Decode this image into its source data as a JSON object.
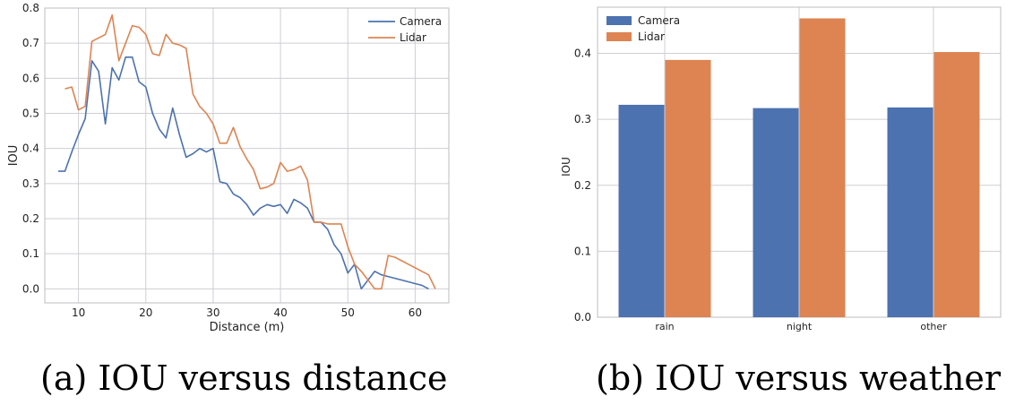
{
  "colors": {
    "camera": "#4c72b0",
    "lidar": "#dd8452",
    "grid": "#cfcfd4",
    "frame": "#bdbdc2"
  },
  "chart_data": [
    {
      "type": "line",
      "xlabel": "Distance (m)",
      "ylabel": "IOU",
      "xlim": [
        5,
        65
      ],
      "ylim": [
        -0.04,
        0.8
      ],
      "xticks": [
        10,
        20,
        30,
        40,
        50,
        60
      ],
      "yticks": [
        0.0,
        0.1,
        0.2,
        0.3,
        0.4,
        0.5,
        0.6,
        0.7,
        0.8
      ],
      "grid": true,
      "legend": "top-right",
      "series": [
        {
          "name": "Camera",
          "color": "#4c72b0",
          "x": [
            7,
            8,
            9,
            10,
            11,
            12,
            13,
            14,
            15,
            16,
            17,
            18,
            19,
            20,
            21,
            22,
            23,
            24,
            25,
            26,
            27,
            28,
            29,
            30,
            31,
            32,
            33,
            34,
            35,
            36,
            37,
            38,
            39,
            40,
            41,
            42,
            43,
            44,
            45,
            46,
            47,
            48,
            49,
            50,
            51,
            52,
            53,
            54,
            55,
            56,
            57,
            58,
            59,
            60,
            61,
            62
          ],
          "y": [
            0.335,
            0.335,
            0.39,
            0.44,
            0.485,
            0.65,
            0.62,
            0.47,
            0.63,
            0.595,
            0.66,
            0.66,
            0.59,
            0.575,
            0.5,
            0.455,
            0.43,
            0.515,
            0.44,
            0.375,
            0.385,
            0.4,
            0.39,
            0.4,
            0.305,
            0.3,
            0.27,
            0.26,
            0.24,
            0.21,
            0.23,
            0.24,
            0.235,
            0.24,
            0.215,
            0.255,
            0.245,
            0.23,
            0.19,
            0.19,
            0.17,
            0.125,
            0.1,
            0.045,
            0.07,
            0.0,
            0.025,
            0.05,
            0.04,
            0.035,
            0.03,
            0.025,
            0.02,
            0.015,
            0.01,
            0.0
          ]
        },
        {
          "name": "Lidar",
          "color": "#dd8452",
          "x": [
            10,
            11,
            12,
            13,
            14,
            15,
            16,
            17,
            18,
            19,
            20,
            21,
            22,
            23,
            24,
            25,
            26,
            27,
            28,
            29,
            30,
            31,
            32,
            33,
            34,
            35,
            36,
            37,
            38,
            39,
            40,
            41,
            42,
            43,
            44,
            45,
            46,
            47,
            48,
            49,
            50,
            51,
            52,
            53,
            54,
            55,
            56,
            57,
            58,
            59,
            60,
            61,
            62,
            63
          ],
          "y": [
            0.51,
            0.52,
            0.705,
            0.715,
            0.725,
            0.78,
            0.65,
            0.7,
            0.75,
            0.745,
            0.725,
            0.67,
            0.665,
            0.725,
            0.7,
            0.695,
            0.685,
            0.555,
            0.52,
            0.5,
            0.47,
            0.415,
            0.415,
            0.46,
            0.405,
            0.37,
            0.34,
            0.285,
            0.29,
            0.3,
            0.36,
            0.335,
            0.34,
            0.35,
            0.31,
            0.19,
            0.19,
            0.185,
            0.185,
            0.185,
            0.12,
            0.07,
            0.05,
            0.025,
            0.0,
            0.0,
            0.095,
            0.09,
            0.08,
            0.07,
            0.06,
            0.05,
            0.04,
            0.0
          ],
          "lead_x": [
            8,
            9,
            10
          ],
          "lead_y": [
            0.57,
            0.575,
            0.51
          ]
        }
      ]
    },
    {
      "type": "bar",
      "xlabel": "",
      "ylabel": "IOU",
      "categories": [
        "rain",
        "night",
        "other"
      ],
      "ylim": [
        0,
        0.47
      ],
      "yticks": [
        0.0,
        0.1,
        0.2,
        0.3,
        0.4
      ],
      "grid": true,
      "legend": "top-left",
      "series": [
        {
          "name": "Camera",
          "color": "#4c72b0",
          "values": [
            0.322,
            0.317,
            0.318
          ]
        },
        {
          "name": "Lidar",
          "color": "#dd8452",
          "values": [
            0.39,
            0.453,
            0.402
          ]
        }
      ]
    }
  ],
  "captions": {
    "a": "(a) IOU versus distance",
    "b": "(b) IOU versus weather"
  }
}
